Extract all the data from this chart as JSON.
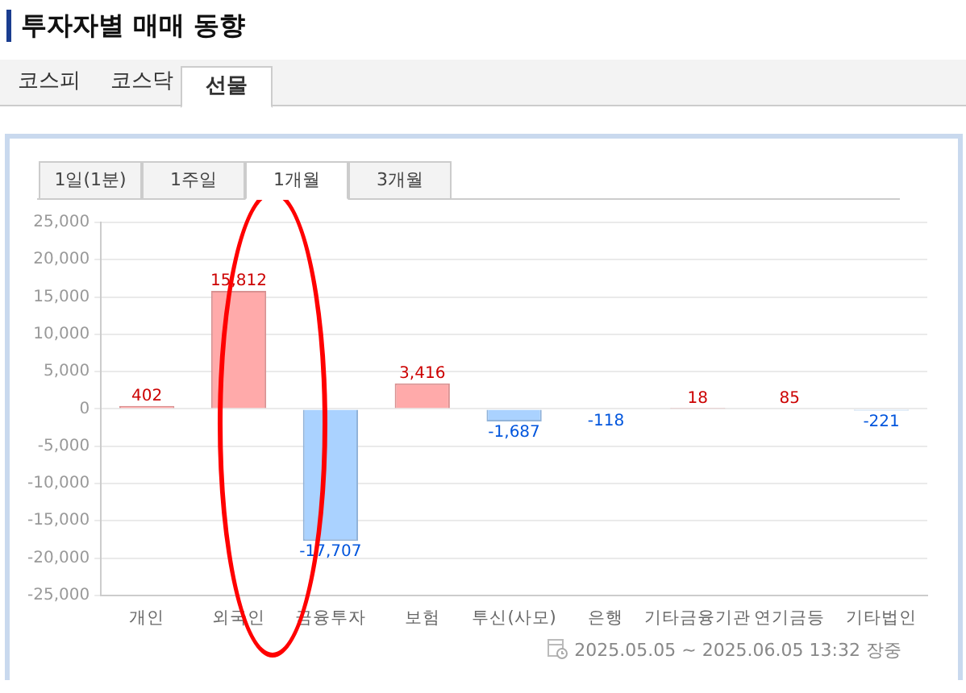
{
  "chart_data": {
    "type": "bar",
    "title": "투자자별 매매 동향",
    "categories": [
      "개인",
      "외국인",
      "금융투자",
      "보험",
      "투신(사모)",
      "은행",
      "기타금융기관",
      "연기금등",
      "기타법인"
    ],
    "values": [
      402,
      15812,
      -17707,
      3416,
      -1687,
      -118,
      18,
      85,
      -221
    ],
    "colors": [
      "#ffaaaa",
      "#ffaaaa",
      "#aad2ff",
      "#ffaaaa",
      "#aad2ff",
      "#aad2ff",
      "#ffaaaa",
      "#ffaaaa",
      "#aad2ff"
    ],
    "ylim": [
      -25000,
      25000
    ],
    "yticks": [
      {
        "value": -25000,
        "label": "-25,000"
      },
      {
        "value": -20000,
        "label": "-20,000"
      },
      {
        "value": -15000,
        "label": "-15,000"
      },
      {
        "value": -10000,
        "label": "-10,000"
      },
      {
        "value": -5000,
        "label": "-5,000"
      },
      0,
      {
        "value": 5000,
        "label": "5,000"
      },
      {
        "value": 10000,
        "label": "10,000"
      },
      {
        "value": 15000,
        "label": "15,000"
      },
      {
        "value": 20000,
        "label": "20,000"
      },
      {
        "value": 25000,
        "label": "25,000"
      }
    ],
    "grid": "y",
    "value_labels": [
      "402",
      "15,812",
      "-17,707",
      "3,416",
      "-1,687",
      "-118",
      "18",
      "85",
      "-221"
    ],
    "annotations": [
      "코스피",
      "코스닥",
      "선물",
      "1일(1분)",
      "1주일",
      "1개월",
      "3개월",
      "2025.05.05 ~ 2025.06.05 13:32 장중"
    ]
  }
}
